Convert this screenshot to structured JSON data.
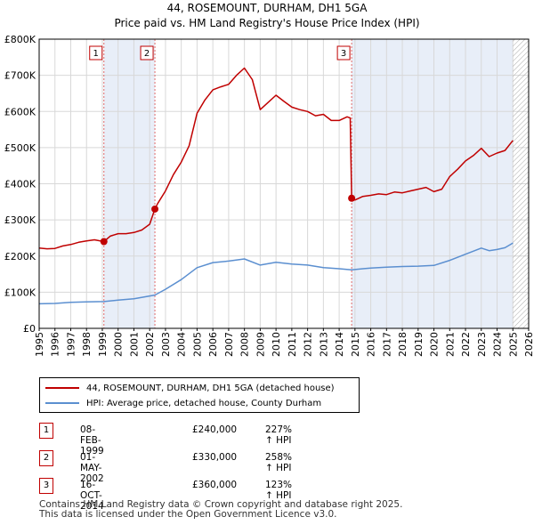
{
  "title": "44, ROSEMOUNT, DURHAM, DH1 5GA",
  "subtitle": "Price paid vs. HM Land Registry's House Price Index (HPI)",
  "legend": [
    {
      "label": "44, ROSEMOUNT, DURHAM, DH1 5GA (detached house)",
      "color": "#c00000"
    },
    {
      "label": "HPI: Average price, detached house, County Durham",
      "color": "#5b8fd0"
    }
  ],
  "sales": [
    {
      "num": "1",
      "date": "08-FEB-1999",
      "price": "£240,000",
      "hpi": "227% ↑ HPI"
    },
    {
      "num": "2",
      "date": "01-MAY-2002",
      "price": "£330,000",
      "hpi": "258% ↑ HPI"
    },
    {
      "num": "3",
      "date": "16-OCT-2014",
      "price": "£360,000",
      "hpi": "123% ↑ HPI"
    }
  ],
  "footer": {
    "line1": "Contains HM Land Registry data © Crown copyright and database right 2025.",
    "line2": "This data is licensed under the Open Government Licence v3.0."
  },
  "chart_data": {
    "type": "line",
    "title": "44, ROSEMOUNT, DURHAM, DH1 5GA",
    "xlim": [
      1995,
      2026
    ],
    "ylim": [
      0,
      800000
    ],
    "x_ticks": [
      "1995",
      "1996",
      "1997",
      "1998",
      "1999",
      "2000",
      "2001",
      "2002",
      "2003",
      "2004",
      "2005",
      "2006",
      "2007",
      "2008",
      "2009",
      "2010",
      "2011",
      "2012",
      "2013",
      "2014",
      "2015",
      "2016",
      "2017",
      "2018",
      "2019",
      "2020",
      "2021",
      "2022",
      "2023",
      "2024",
      "2025",
      "2026"
    ],
    "y_ticks": [
      {
        "value": 0,
        "label": "£0"
      },
      {
        "value": 100000,
        "label": "£100K"
      },
      {
        "value": 200000,
        "label": "£200K"
      },
      {
        "value": 300000,
        "label": "£300K"
      },
      {
        "value": 400000,
        "label": "£400K"
      },
      {
        "value": 500000,
        "label": "£500K"
      },
      {
        "value": 600000,
        "label": "£600K"
      },
      {
        "value": 700000,
        "label": "£700K"
      },
      {
        "value": 800000,
        "label": "£800K"
      }
    ],
    "shaded_regions": [
      [
        1999.1,
        2002.33
      ],
      [
        2014.79,
        2025.0
      ]
    ],
    "hatch_from": 2025.0,
    "sale_markers": [
      {
        "label": "1",
        "x": 1999.1,
        "y": 240000
      },
      {
        "label": "2",
        "x": 2002.33,
        "y": 330000
      },
      {
        "label": "3",
        "x": 2014.79,
        "y": 360000
      }
    ],
    "series": [
      {
        "name": "44, ROSEMOUNT, DURHAM, DH1 5GA (detached house)",
        "color": "#c00000",
        "x": [
          1995.0,
          1995.5,
          1996.0,
          1996.5,
          1997.0,
          1997.5,
          1998.0,
          1998.5,
          1999.1,
          1999.5,
          2000.0,
          2000.5,
          2001.0,
          2001.5,
          2002.0,
          2002.33,
          2002.5,
          2003.0,
          2003.5,
          2004.0,
          2004.5,
          2005.0,
          2005.5,
          2006.0,
          2006.5,
          2007.0,
          2007.5,
          2008.0,
          2008.5,
          2009.0,
          2009.5,
          2010.0,
          2010.5,
          2011.0,
          2011.5,
          2012.0,
          2012.5,
          2013.0,
          2013.5,
          2014.0,
          2014.5,
          2014.7,
          2014.79,
          2015.0,
          2015.5,
          2016.0,
          2016.5,
          2017.0,
          2017.5,
          2018.0,
          2018.5,
          2019.0,
          2019.5,
          2020.0,
          2020.5,
          2021.0,
          2021.5,
          2022.0,
          2022.5,
          2023.0,
          2023.5,
          2024.0,
          2024.5,
          2025.0
        ],
        "y": [
          222000,
          220000,
          221000,
          228000,
          232000,
          238000,
          242000,
          245000,
          240000,
          255000,
          262000,
          262000,
          265000,
          272000,
          288000,
          330000,
          345000,
          380000,
          425000,
          460000,
          505000,
          595000,
          632000,
          660000,
          668000,
          675000,
          700000,
          720000,
          688000,
          605000,
          625000,
          645000,
          628000,
          612000,
          605000,
          600000,
          588000,
          592000,
          575000,
          575000,
          585000,
          582000,
          360000,
          355000,
          365000,
          368000,
          372000,
          370000,
          377000,
          375000,
          380000,
          385000,
          390000,
          378000,
          385000,
          420000,
          440000,
          463000,
          478000,
          498000,
          475000,
          485000,
          492000,
          520000
        ]
      },
      {
        "name": "HPI: Average price, detached house, County Durham",
        "color": "#5b8fd0",
        "x": [
          1995.0,
          1996.0,
          1997.0,
          1998.0,
          1999.1,
          2000.0,
          2001.0,
          2002.33,
          2003.0,
          2004.0,
          2005.0,
          2006.0,
          2007.0,
          2008.0,
          2009.0,
          2010.0,
          2011.0,
          2012.0,
          2013.0,
          2014.0,
          2014.79,
          2015.5,
          2016.0,
          2017.0,
          2018.0,
          2019.0,
          2020.0,
          2021.0,
          2022.0,
          2023.0,
          2023.5,
          2024.0,
          2024.5,
          2025.0
        ],
        "y": [
          68000,
          69000,
          72000,
          73000,
          74000,
          78000,
          82000,
          92000,
          108000,
          135000,
          168000,
          182000,
          186000,
          192000,
          175000,
          183000,
          178000,
          175000,
          168000,
          165000,
          162000,
          165000,
          167000,
          169000,
          171000,
          172000,
          174000,
          188000,
          205000,
          222000,
          215000,
          218000,
          223000,
          236000
        ]
      }
    ]
  }
}
